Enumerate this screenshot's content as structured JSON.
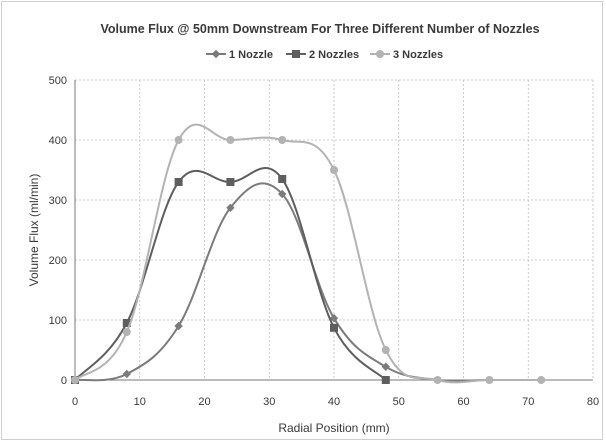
{
  "chart_data": {
    "type": "line",
    "title": "Volume Flux @ 50mm Downstream For Three Different Number of Nozzles",
    "xlabel": "Radial Position (mm)",
    "ylabel": "Volume Flux (ml/min)",
    "xlim": [
      0,
      80
    ],
    "ylim": [
      0,
      500
    ],
    "x_ticks": [
      0,
      10,
      20,
      30,
      40,
      50,
      60,
      70,
      80
    ],
    "y_ticks": [
      0,
      100,
      200,
      300,
      400,
      500
    ],
    "grid": true,
    "smooth": true,
    "legend_position": "top",
    "series": [
      {
        "name": "1 Nozzle",
        "marker": "diamond",
        "color": "#7b7b7b",
        "x": [
          0,
          8,
          16,
          24,
          32,
          40,
          48,
          56,
          64,
          72
        ],
        "y": [
          0,
          10,
          90,
          287,
          310,
          103,
          22,
          0,
          0,
          0
        ]
      },
      {
        "name": "2 Nozzles",
        "marker": "square",
        "color": "#5e5e5e",
        "x": [
          0,
          8,
          16,
          24,
          32,
          40,
          48
        ],
        "y": [
          0,
          95,
          330,
          330,
          335,
          87,
          0
        ]
      },
      {
        "name": "3 Nozzles",
        "marker": "circle",
        "color": "#b3b3b3",
        "x": [
          0,
          8,
          16,
          24,
          32,
          40,
          48,
          56,
          64,
          72
        ],
        "y": [
          0,
          80,
          400,
          400,
          400,
          350,
          50,
          0,
          0,
          0
        ]
      }
    ]
  }
}
